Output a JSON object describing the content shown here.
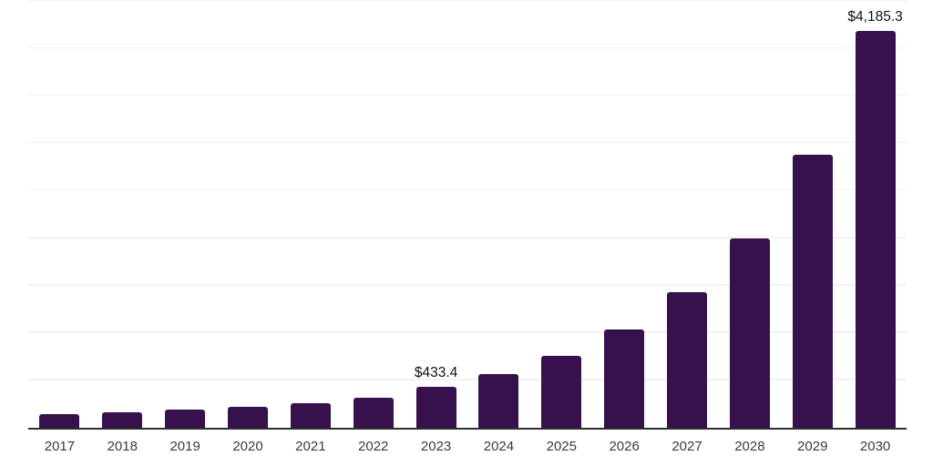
{
  "chart_data": {
    "type": "bar",
    "title": "",
    "xlabel": "",
    "ylabel": "",
    "categories": [
      "2017",
      "2018",
      "2019",
      "2020",
      "2021",
      "2022",
      "2023",
      "2024",
      "2025",
      "2026",
      "2027",
      "2028",
      "2029",
      "2030"
    ],
    "values": [
      148,
      168,
      192,
      222,
      256,
      318,
      433.4,
      565,
      755,
      1035,
      1425,
      2000,
      2875,
      4185.3
    ],
    "point_labels": [
      "",
      "",
      "",
      "",
      "",
      "",
      "$433.4",
      "",
      "",
      "",
      "",
      "",
      "",
      "$4,185.3"
    ],
    "ylim": [
      0,
      4500
    ],
    "grid_step": 500,
    "grid": true,
    "y_tick_labels_visible": false,
    "legend_position": "none",
    "colors": {
      "bar": "#36114D",
      "gridline": "#F1F1F1",
      "axis_line": "#2E2E2E",
      "x_label_text": "#3A3A3A",
      "value_label_text": "#111111",
      "background": "#FFFFFF"
    }
  }
}
